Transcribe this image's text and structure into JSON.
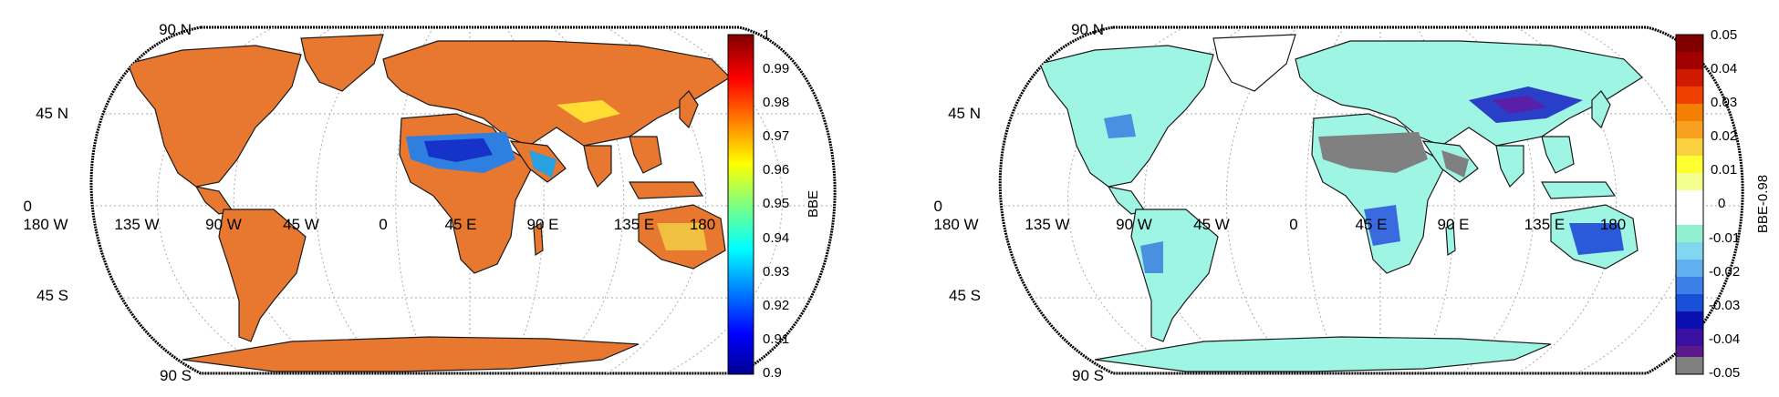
{
  "map_panels": [
    {
      "lat_labels": [
        "90 N",
        "45 N",
        "0",
        "45 S",
        "90 S"
      ],
      "lon_labels": [
        "180 W",
        "135 W",
        "90 W",
        "45 W",
        "0",
        "45 E",
        "90 E",
        "135 E",
        "180"
      ],
      "colorbar": {
        "label": "BBE",
        "ticks": [
          "1",
          "0.99",
          "0.98",
          "0.97",
          "0.96",
          "0.95",
          "0.94",
          "0.93",
          "0.92",
          "0.91",
          "0.9"
        ],
        "range": [
          0.9,
          1.0
        ],
        "colormap": "jet-continuous"
      },
      "land_color": "#e8772f",
      "desert_color": "#2f7fe0"
    },
    {
      "lat_labels": [
        "90 N",
        "45 N",
        "0",
        "45 S",
        "90 S"
      ],
      "lon_labels": [
        "180 W",
        "135 W",
        "90 W",
        "45 W",
        "0",
        "45 E",
        "90 E",
        "135 E",
        "180"
      ],
      "colorbar": {
        "label": "BBE-0.98",
        "ticks": [
          "0.05",
          "0.04",
          "0.03",
          "0.02",
          "0.01",
          "0",
          "-0.01",
          "-0.02",
          "-0.03",
          "-0.04",
          "-0.05"
        ],
        "range": [
          -0.05,
          0.05
        ],
        "colormap": "jet-discrete-with-white-center",
        "lowest_bin_color": "#808080"
      },
      "land_color": "#9ff5e4",
      "desert_color": "#808080"
    }
  ],
  "colors": {
    "graticule": "#aaaaaa",
    "frame": "#000000"
  }
}
